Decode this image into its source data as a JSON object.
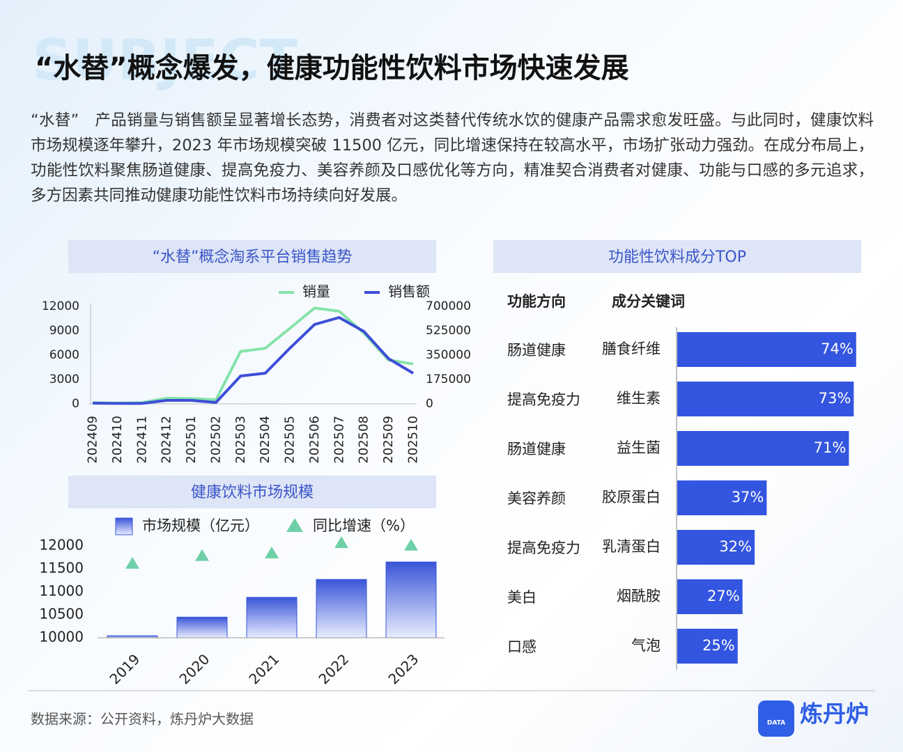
{
  "header": {
    "watermark": "SUBJECT",
    "title": "“水替”概念爆发，健康功能性饮料市场快速发展"
  },
  "body": "“水替”　产品销量与销售额呈显著增长态势，消费者对这类替代传统水饮的健康产品需求愈发旺盛。与此同时，健康饮料市场规模逐年攀升，2023 年市场规模突破 11500 亿元，同比增速保持在较高水平，市场扩张动力强劲。在成分布局上，功能性饮料聚焦肠道健康、提高免疫力、美容养颜及口感优化等方向，精准契合消费者对健康、功能与口感的多元追求，多方因素共同推动健康功能性饮料市场持续向好发展。",
  "chart_data": [
    {
      "type": "line",
      "title": "“水替”概念淘系平台销售趋势",
      "categories": [
        "202409",
        "202410",
        "202411",
        "202412",
        "202501",
        "202502",
        "202503",
        "202504",
        "202505",
        "202506",
        "202507",
        "202508",
        "202509",
        "202510"
      ],
      "series": [
        {
          "name": "销量",
          "color": "#86e3a8",
          "values": [
            150,
            100,
            150,
            700,
            650,
            500,
            6450,
            6850,
            9300,
            11800,
            11400,
            8700,
            5400,
            4900
          ]
        },
        {
          "name": "销售额",
          "color": "#3d4fd6",
          "axis": "y2",
          "values": [
            5000,
            3000,
            3000,
            25000,
            25000,
            10000,
            200000,
            220000,
            400000,
            570000,
            620000,
            520000,
            325000,
            220000
          ]
        }
      ],
      "ylim": [
        0,
        12000
      ],
      "yticks": [
        0,
        3000,
        6000,
        9000,
        12000
      ],
      "y2lim": [
        0,
        700000
      ],
      "y2ticks": [
        0,
        175000,
        350000,
        525000,
        700000
      ]
    },
    {
      "type": "bar",
      "title": "健康饮料市场规模",
      "categories": [
        "2019",
        "2020",
        "2021",
        "2022",
        "2023"
      ],
      "series": [
        {
          "name": "市场规模（亿元）",
          "color": "#3a55d8",
          "values": [
            10045,
            10450,
            10880,
            11270,
            11650
          ]
        },
        {
          "name": "同比增速（%）",
          "color": "#6fd0a8",
          "axis": "y2",
          "marker": "triangle",
          "values": [
            5.8,
            6.4,
            6.6,
            7.4,
            7.2
          ]
        }
      ],
      "ylim": [
        10000,
        12000
      ],
      "yticks": [
        10000,
        10500,
        11000,
        11500,
        12000
      ],
      "y2lim": [
        0,
        8
      ]
    },
    {
      "type": "barh",
      "title": "功能性饮料成分TOP",
      "headers": [
        "功能方向",
        "成分关键词"
      ],
      "groups": [
        "肠道健康",
        "提高免疫力",
        "肠道健康",
        "美容养颜",
        "提高免疫力",
        "美白",
        "口感"
      ],
      "categories": [
        "膳食纤维",
        "维生素",
        "益生菌",
        "胶原蛋白",
        "乳清蛋白",
        "烟酰胺",
        "气泡"
      ],
      "values": [
        74,
        73,
        71,
        37,
        32,
        27,
        25
      ],
      "value_labels": [
        "74%",
        "73%",
        "71%",
        "37%",
        "32%",
        "27%",
        "25%"
      ],
      "color": "#3355e0",
      "xlim": [
        0,
        100
      ]
    }
  ],
  "footer": {
    "source": "数据来源：公开资料，炼丹炉大数据",
    "logo_badge": "DATA",
    "logo": "炼丹炉"
  }
}
